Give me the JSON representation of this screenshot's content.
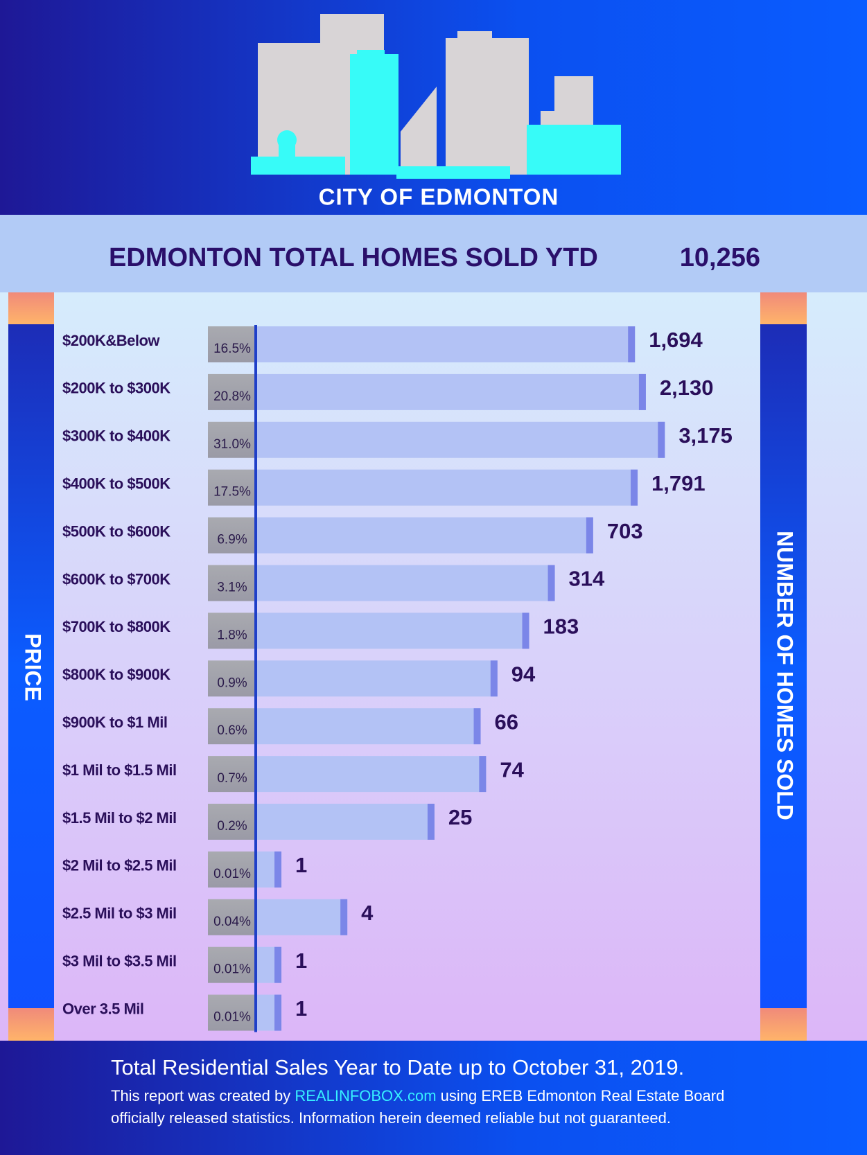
{
  "chart_data": {
    "type": "bar",
    "orientation": "horizontal",
    "header": "CITY OF EDMONTON",
    "title": "EDMONTON  TOTAL HOMES SOLD YTD",
    "total": "10,256",
    "y_label": "PRICE",
    "x_label": "NUMBER OF HOMES SOLD",
    "categories": [
      "$200K&Below",
      "$200K to $300K",
      "$300K to $400K",
      "$400K to $500K",
      "$500K to $600K",
      "$600K to $700K",
      "$700K to $800K",
      "$800K to $900K",
      "$900K to $1 Mil",
      "$1 Mil to $1.5 Mil",
      "$1.5 Mil to $2 Mil",
      "$2 Mil to $2.5 Mil",
      "$2.5 Mil to $3 Mil",
      "$3 Mil to $3.5 Mil",
      "Over 3.5 Mil"
    ],
    "values": [
      1694,
      2130,
      3175,
      1791,
      703,
      314,
      183,
      94,
      66,
      74,
      25,
      1,
      4,
      1,
      1
    ],
    "value_labels": [
      "1,694",
      "2,130",
      "3,175",
      "1,791",
      "703",
      "314",
      "183",
      "94",
      "66",
      "74",
      "25",
      "1",
      "4",
      "1",
      "1"
    ],
    "percents": [
      16.5,
      20.8,
      31.0,
      17.5,
      6.9,
      3.1,
      1.8,
      0.9,
      0.6,
      0.7,
      0.2,
      0.01,
      0.04,
      0.01,
      0.01
    ],
    "percent_labels": [
      "16.5%",
      "20.8%",
      "31.0%",
      "17.5%",
      "6.9%",
      "3.1%",
      "1.8%",
      "0.9%",
      "0.6%",
      "0.7%",
      "0.2%",
      "0.01%",
      "0.04%",
      "0.01%",
      "0.01%"
    ],
    "xscale": "log",
    "xlim": [
      0.6,
      3500
    ],
    "color": "#b3c2f5",
    "cap_color": "#7b86e8",
    "footer": {
      "headline": "Total Residential Sales Year to Date up to October 31, 2019.",
      "line1_before": "This report was created by",
      "link": "REALINFOBOX.com",
      "line1_after": "using EREB Edmonton Real Estate Board",
      "line2": "officially released statistics. Information herein deemed reliable but not guaranteed."
    }
  }
}
